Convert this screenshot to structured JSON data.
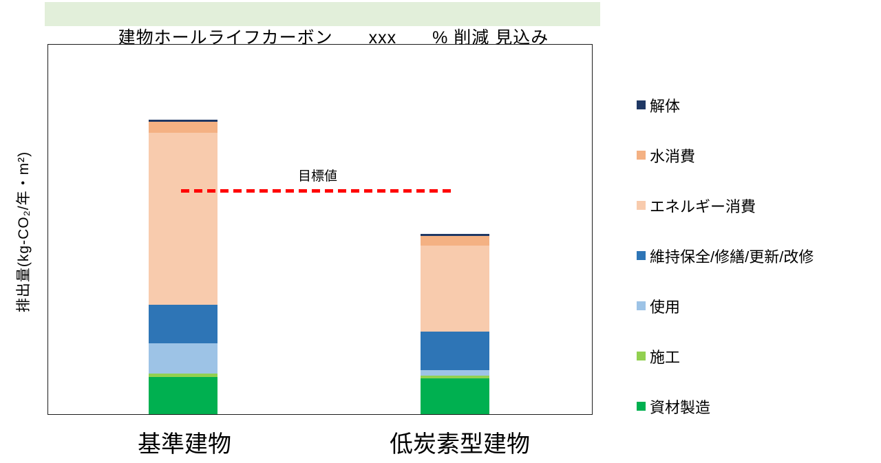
{
  "title": {
    "text": "建物ホールライフカーボン　　xxx　　% 削減 見込み"
  },
  "colors": {
    "banner_bg": "#E2EFDA",
    "target_line": "#FF0000",
    "plot_border": "#1A1A1A"
  },
  "y_axis": {
    "label": "排出量(kg-CO₂/年・m²)"
  },
  "x_axis": {
    "categories": [
      "基準建物",
      "低炭素型建物"
    ]
  },
  "target": {
    "label": "目標値"
  },
  "legend": {
    "position": "right",
    "items": [
      {
        "label": "解体",
        "color": "#1F3864"
      },
      {
        "label": "水消費",
        "color": "#F4B183"
      },
      {
        "label": "エネルギー消費",
        "color": "#F8CBAD"
      },
      {
        "label": "維持保全/修繕/更新/改修",
        "color": "#2E75B6"
      },
      {
        "label": "使用",
        "color": "#9DC3E6"
      },
      {
        "label": "施工",
        "color": "#92D050"
      },
      {
        "label": "資材製造",
        "color": "#00B050"
      }
    ]
  },
  "chart_data": {
    "type": "bar",
    "stacked": true,
    "orientation": "vertical",
    "title": "建物ホールライフカーボン xxx % 削減 見込み",
    "xlabel": "",
    "ylabel": "排出量(kg-CO₂/年・m²)",
    "categories": [
      "基準建物",
      "低炭素型建物"
    ],
    "series": [
      {
        "name": "資材製造",
        "color": "#00B050",
        "values": [
          12.6,
          12.1
        ]
      },
      {
        "name": "施工",
        "color": "#92D050",
        "values": [
          1.2,
          0.9
        ]
      },
      {
        "name": "使用",
        "color": "#9DC3E6",
        "values": [
          10.3,
          1.9
        ]
      },
      {
        "name": "維持保全/修繕/更新/改修",
        "color": "#2E75B6",
        "values": [
          13.1,
          13.1
        ]
      },
      {
        "name": "エネルギー消費",
        "color": "#F8CBAD",
        "values": [
          58.4,
          29.2
        ]
      },
      {
        "name": "水消費",
        "color": "#F4B183",
        "values": [
          3.7,
          3.3
        ]
      },
      {
        "name": "解体",
        "color": "#1F3864",
        "values": [
          0.7,
          0.7
        ]
      }
    ],
    "series_order": "bottom-to-top",
    "category_totals": [
      100,
      61.2
    ],
    "value_units": "relative units (基準建物 stack total = 100; y-axis shows no numeric scale or ticks)",
    "target_line": {
      "label": "目標値",
      "value": 76,
      "style": "dashed",
      "color": "#FF0000"
    },
    "ylim": [
      0,
      125
    ],
    "grid": false,
    "legend_position": "right"
  }
}
